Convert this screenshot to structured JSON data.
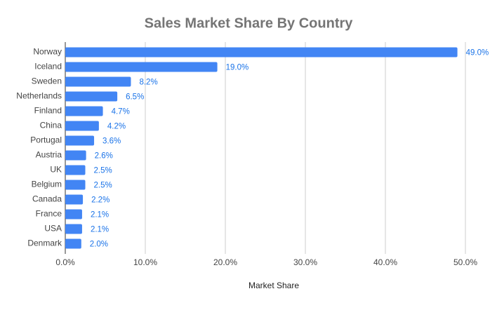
{
  "chart_data": {
    "type": "hbar",
    "title": "Sales Market Share By Country",
    "x_label": "Market Share",
    "categories": [
      "Norway",
      "Iceland",
      "Sweden",
      "Netherlands",
      "Finland",
      "China",
      "Portugal",
      "Austria",
      "UK",
      "Belgium",
      "Canada",
      "France",
      "USA",
      "Denmark"
    ],
    "values": [
      49.0,
      19.0,
      8.2,
      6.5,
      4.7,
      4.2,
      3.6,
      2.6,
      2.5,
      2.5,
      2.2,
      2.1,
      2.1,
      2.0
    ],
    "value_labels": [
      "49.0%",
      "19.0%",
      "8.2%",
      "6.5%",
      "4.7%",
      "4.2%",
      "3.6%",
      "2.6%",
      "2.5%",
      "2.5%",
      "2.2%",
      "2.1%",
      "2.1%",
      "2.0%"
    ],
    "color": "#4285f4",
    "xlim": [
      0,
      50
    ],
    "xticks": [
      {
        "value": 0,
        "label": "0.0%"
      },
      {
        "value": 10,
        "label": "10.0%"
      },
      {
        "value": 20,
        "label": "20.0%"
      },
      {
        "value": 30,
        "label": "30.0%"
      },
      {
        "value": 40,
        "label": "40.0%"
      },
      {
        "value": 50,
        "label": "50.0%"
      }
    ],
    "grid": true
  }
}
